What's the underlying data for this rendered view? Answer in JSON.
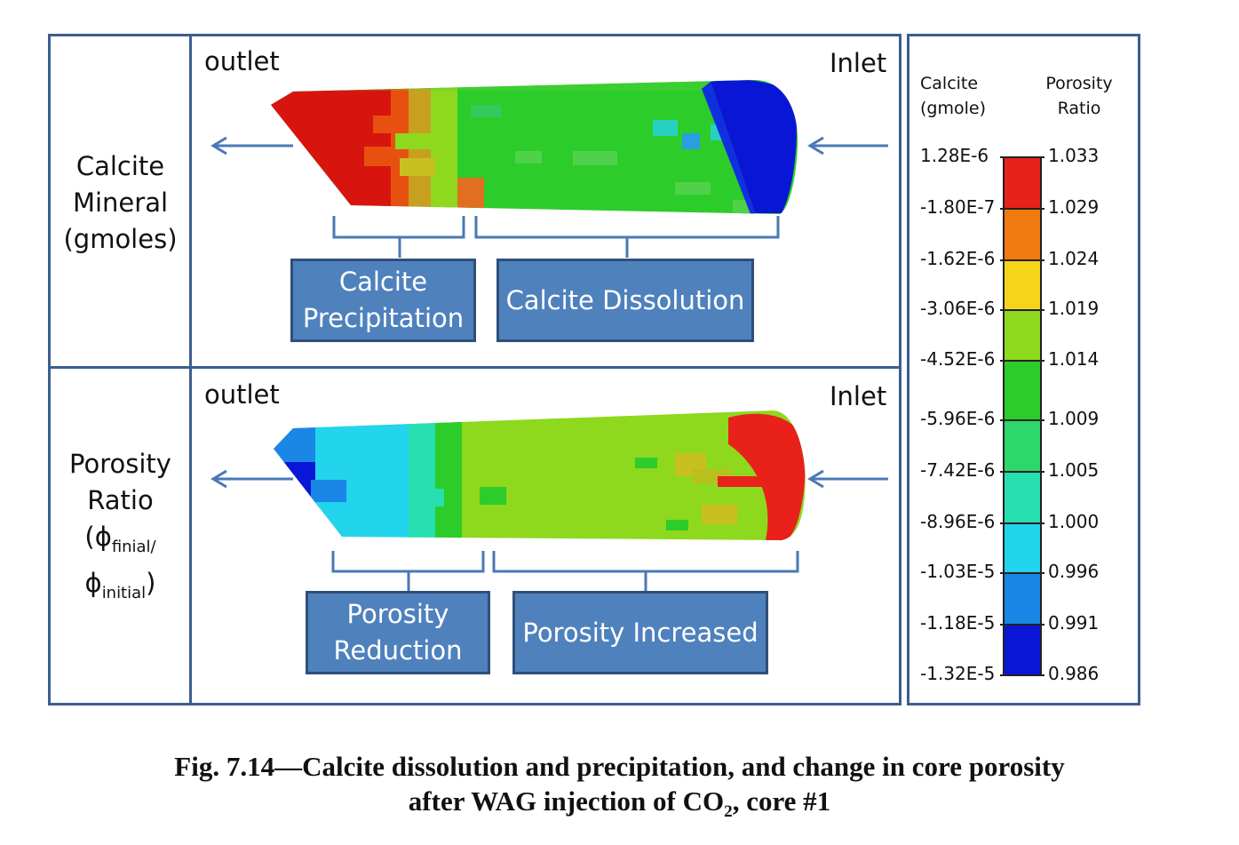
{
  "panels": {
    "calcite": {
      "row_label_lines": [
        "Calcite",
        "Mineral",
        "(gmoles)"
      ],
      "outlet": "outlet",
      "inlet": "Inlet",
      "callout_left_lines": [
        "Calcite",
        "Precipitation"
      ],
      "callout_right": "Calcite Dissolution"
    },
    "porosity": {
      "row_label_lines": [
        "Porosity",
        "Ratio"
      ],
      "phi": "ϕ",
      "sub_final": "finial/",
      "sub_initial": "initial",
      "outlet": "outlet",
      "inlet": "Inlet",
      "callout_left_lines": [
        "Porosity",
        "Reduction"
      ],
      "callout_right": "Porosity Increased"
    }
  },
  "legend": {
    "header_left": [
      "Calcite",
      "(gmole)"
    ],
    "header_right": [
      "Porosity",
      "Ratio"
    ],
    "calcite_ticks": [
      "1.28E-6",
      "-1.80E-7",
      "-1.62E-6",
      "-3.06E-6",
      "-4.52E-6",
      "-5.96E-6",
      "-7.42E-6",
      "-8.96E-6",
      "-1.03E-5",
      "-1.18E-5",
      "-1.32E-5"
    ],
    "porosity_ticks": [
      "1.033",
      "1.029",
      "1.024",
      "1.019",
      "1.014",
      "1.009",
      "1.005",
      "1.000",
      "0.996",
      "0.991",
      "0.986"
    ],
    "colors": [
      "#e8211a",
      "#f07a10",
      "#f5d51a",
      "#8ed81e",
      "#2ccc2a",
      "#2cd86a",
      "#28dfb0",
      "#22d4ec",
      "#1a86e6",
      "#0a16d6"
    ]
  },
  "caption": {
    "line1": "Fig. 7.14—Calcite dissolution and precipitation, and change in core porosity",
    "line2_before": "after WAG injection of CO",
    "line2_sub": "2",
    "line2_after": ", core #1"
  }
}
